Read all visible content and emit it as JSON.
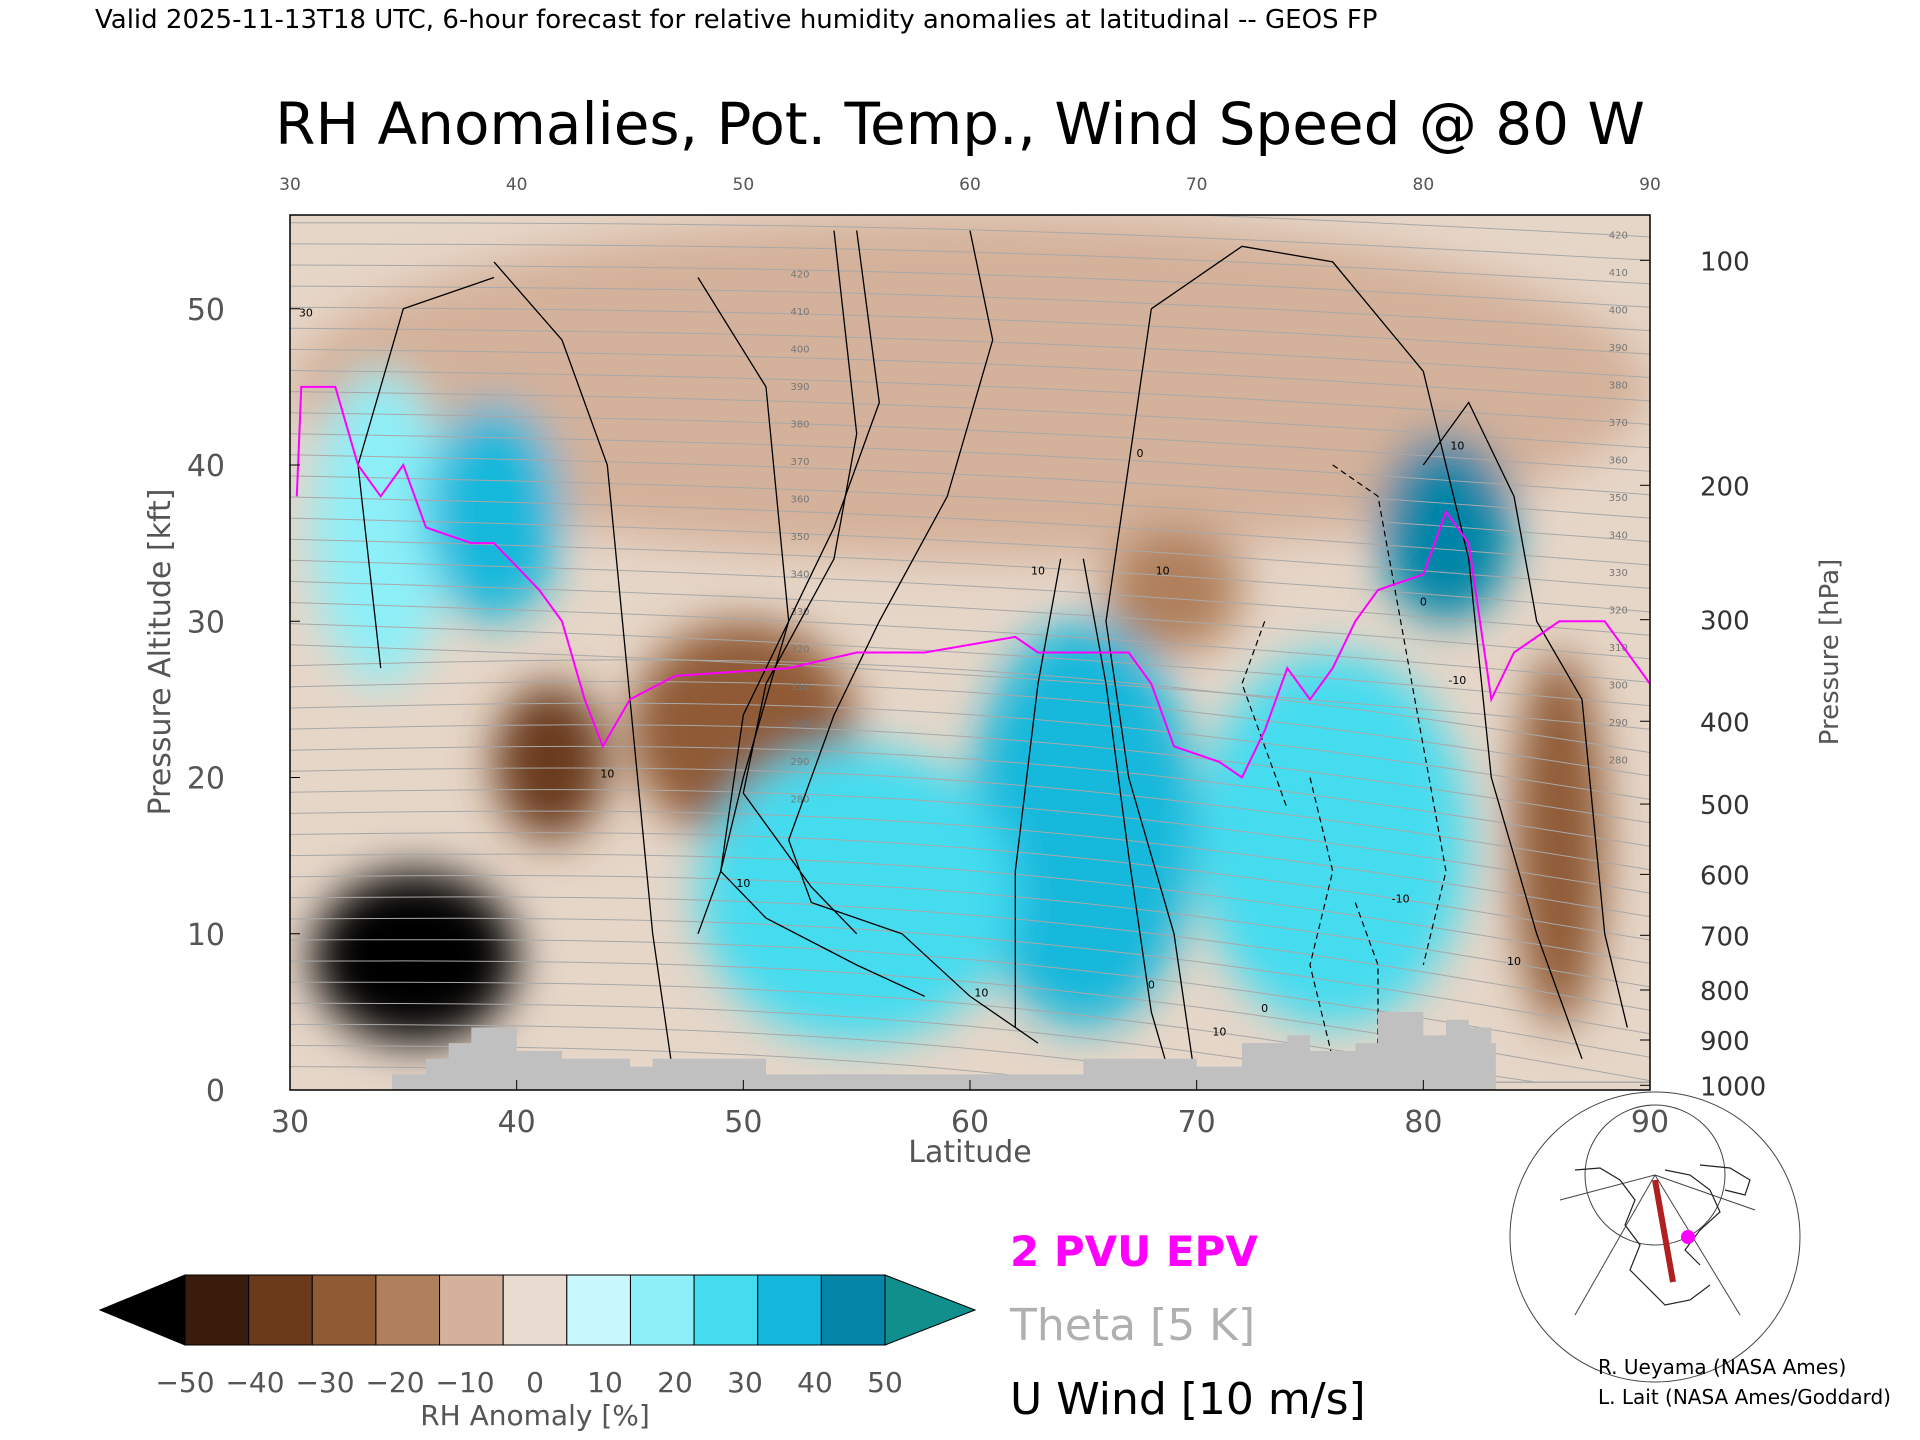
{
  "header": {
    "validity": "Valid 2025-11-13T18 UTC, 6-hour forecast for relative humidity anomalies at latitudinal -- GEOS FP",
    "title": "RH Anomalies, Pot. Temp., Wind Speed @ 80 W"
  },
  "chart_data": {
    "type": "heatmap",
    "title": "RH Anomalies, Pot. Temp., Wind Speed @ 80 W",
    "xlabel": "Latitude",
    "ylabel_left": "Pressure Altitude [kft]",
    "ylabel_right": "Pressure [hPa]",
    "xlim": [
      30,
      90
    ],
    "ylim_kft": [
      0,
      56
    ],
    "x_ticks": [
      "30",
      "40",
      "50",
      "60",
      "70",
      "80",
      "90"
    ],
    "top_x_ticks": [
      "30",
      "40",
      "50",
      "60",
      "70",
      "80",
      "90"
    ],
    "y_ticks_kft": [
      "0",
      "10",
      "20",
      "30",
      "40",
      "50"
    ],
    "pressure_ticks": [
      {
        "label": "100",
        "kft": 53.1
      },
      {
        "label": "200",
        "kft": 38.7
      },
      {
        "label": "300",
        "kft": 30.1
      },
      {
        "label": "400",
        "kft": 23.6
      },
      {
        "label": "500",
        "kft": 18.3
      },
      {
        "label": "600",
        "kft": 13.8
      },
      {
        "label": "700",
        "kft": 9.9
      },
      {
        "label": "800",
        "kft": 6.4
      },
      {
        "label": "900",
        "kft": 3.2
      },
      {
        "label": "1000",
        "kft": 0.3
      }
    ],
    "rh_anomaly_regions": [
      {
        "lat": [
          36,
          42
        ],
        "kft": [
          30,
          44
        ],
        "value": 35
      },
      {
        "lat": [
          31,
          37
        ],
        "kft": [
          26,
          46
        ],
        "value": 12
      },
      {
        "lat": [
          48,
          62
        ],
        "kft": [
          3,
          22
        ],
        "value": 22
      },
      {
        "lat": [
          60,
          70
        ],
        "kft": [
          4,
          30
        ],
        "value": 30
      },
      {
        "lat": [
          70,
          82
        ],
        "kft": [
          4,
          28
        ],
        "value": 25
      },
      {
        "lat": [
          78,
          84
        ],
        "kft": [
          30,
          42
        ],
        "value": 50
      },
      {
        "lat": [
          31,
          40
        ],
        "kft": [
          3,
          14
        ],
        "value": -55
      },
      {
        "lat": [
          39,
          44
        ],
        "kft": [
          16,
          26
        ],
        "value": -40
      },
      {
        "lat": [
          45,
          55
        ],
        "kft": [
          16,
          30
        ],
        "value": -25
      },
      {
        "lat": [
          84,
          88
        ],
        "kft": [
          4,
          28
        ],
        "value": -30
      },
      {
        "lat": [
          66,
          72
        ],
        "kft": [
          28,
          36
        ],
        "value": -20
      },
      {
        "lat": [
          30,
          90
        ],
        "kft": [
          34,
          56
        ],
        "value": -8
      }
    ],
    "theta_labels": [
      "420",
      "410",
      "400",
      "390",
      "380",
      "370",
      "360",
      "350",
      "340",
      "330",
      "320",
      "310",
      "300",
      "290",
      "280"
    ],
    "wind_contour_labels": [
      "30",
      "10",
      "10",
      "10",
      "0",
      "10",
      "10",
      "10",
      "0",
      "10",
      "-10",
      "-10",
      "0",
      "10",
      "0"
    ],
    "orography": [
      {
        "lat": 34.5,
        "kft": 1
      },
      {
        "lat": 36,
        "kft": 2
      },
      {
        "lat": 37,
        "kft": 3
      },
      {
        "lat": 38,
        "kft": 4
      },
      {
        "lat": 39.5,
        "kft": 4
      },
      {
        "lat": 40,
        "kft": 2.5
      },
      {
        "lat": 42,
        "kft": 2
      },
      {
        "lat": 44,
        "kft": 2
      },
      {
        "lat": 45,
        "kft": 1.5
      },
      {
        "lat": 46,
        "kft": 2
      },
      {
        "lat": 50,
        "kft": 2
      },
      {
        "lat": 51,
        "kft": 1
      },
      {
        "lat": 64,
        "kft": 1
      },
      {
        "lat": 65,
        "kft": 2
      },
      {
        "lat": 68,
        "kft": 2
      },
      {
        "lat": 70,
        "kft": 1.5
      },
      {
        "lat": 72,
        "kft": 3
      },
      {
        "lat": 74,
        "kft": 3.5
      },
      {
        "lat": 75,
        "kft": 2.5
      },
      {
        "lat": 77,
        "kft": 3
      },
      {
        "lat": 78,
        "kft": 5
      },
      {
        "lat": 79,
        "kft": 5
      },
      {
        "lat": 80,
        "kft": 3.5
      },
      {
        "lat": 81,
        "kft": 4.5
      },
      {
        "lat": 82,
        "kft": 4
      },
      {
        "lat": 83,
        "kft": 3
      },
      {
        "lat": 83.2,
        "kft": 0
      }
    ],
    "pv2_line": [
      {
        "lat": 30.3,
        "kft": 38
      },
      {
        "lat": 30.5,
        "kft": 45
      },
      {
        "lat": 32,
        "kft": 45
      },
      {
        "lat": 33,
        "kft": 40
      },
      {
        "lat": 34,
        "kft": 38
      },
      {
        "lat": 35,
        "kft": 40
      },
      {
        "lat": 36,
        "kft": 36
      },
      {
        "lat": 38,
        "kft": 35
      },
      {
        "lat": 39,
        "kft": 35
      },
      {
        "lat": 41,
        "kft": 32
      },
      {
        "lat": 42,
        "kft": 30
      },
      {
        "lat": 43,
        "kft": 25
      },
      {
        "lat": 43.8,
        "kft": 22
      },
      {
        "lat": 45,
        "kft": 25
      },
      {
        "lat": 47,
        "kft": 26.5
      },
      {
        "lat": 52,
        "kft": 27
      },
      {
        "lat": 55,
        "kft": 28
      },
      {
        "lat": 58,
        "kft": 28
      },
      {
        "lat": 62,
        "kft": 29
      },
      {
        "lat": 63,
        "kft": 28
      },
      {
        "lat": 65,
        "kft": 28
      },
      {
        "lat": 67,
        "kft": 28
      },
      {
        "lat": 68,
        "kft": 26
      },
      {
        "lat": 69,
        "kft": 22
      },
      {
        "lat": 71,
        "kft": 21
      },
      {
        "lat": 72,
        "kft": 20
      },
      {
        "lat": 73,
        "kft": 23
      },
      {
        "lat": 74,
        "kft": 27
      },
      {
        "lat": 75,
        "kft": 25
      },
      {
        "lat": 76,
        "kft": 27
      },
      {
        "lat": 77,
        "kft": 30
      },
      {
        "lat": 78,
        "kft": 32
      },
      {
        "lat": 80,
        "kft": 33
      },
      {
        "lat": 81,
        "kft": 37
      },
      {
        "lat": 82,
        "kft": 35
      },
      {
        "lat": 83,
        "kft": 25
      },
      {
        "lat": 84,
        "kft": 28
      },
      {
        "lat": 86,
        "kft": 30
      },
      {
        "lat": 88,
        "kft": 30
      },
      {
        "lat": 90,
        "kft": 26
      }
    ],
    "wind_lines": [
      [
        {
          "lat": 34,
          "kft": 27
        },
        {
          "lat": 33,
          "kft": 40
        },
        {
          "lat": 35,
          "kft": 50
        },
        {
          "lat": 39,
          "kft": 52
        }
      ],
      [
        {
          "lat": 39,
          "kft": 53
        },
        {
          "lat": 42,
          "kft": 48
        },
        {
          "lat": 44,
          "kft": 40
        },
        {
          "lat": 45,
          "kft": 25
        },
        {
          "lat": 46,
          "kft": 10
        },
        {
          "lat": 47,
          "kft": 0
        }
      ],
      [
        {
          "lat": 48,
          "kft": 52
        },
        {
          "lat": 51,
          "kft": 45
        },
        {
          "lat": 52,
          "kft": 30
        },
        {
          "lat": 50,
          "kft": 20
        },
        {
          "lat": 49,
          "kft": 14
        },
        {
          "lat": 48,
          "kft": 10
        }
      ],
      [
        {
          "lat": 54,
          "kft": 55
        },
        {
          "lat": 55,
          "kft": 42
        },
        {
          "lat": 54,
          "kft": 34
        },
        {
          "lat": 51,
          "kft": 26
        },
        {
          "lat": 50,
          "kft": 19
        },
        {
          "lat": 53,
          "kft": 13
        },
        {
          "lat": 55,
          "kft": 10
        }
      ],
      [
        {
          "lat": 55,
          "kft": 55
        },
        {
          "lat": 56,
          "kft": 44
        },
        {
          "lat": 54,
          "kft": 36
        },
        {
          "lat": 52,
          "kft": 30
        },
        {
          "lat": 50,
          "kft": 24
        },
        {
          "lat": 49,
          "kft": 14
        },
        {
          "lat": 51,
          "kft": 11
        },
        {
          "lat": 55,
          "kft": 8
        },
        {
          "lat": 58,
          "kft": 6
        }
      ],
      [
        {
          "lat": 60,
          "kft": 55
        },
        {
          "lat": 61,
          "kft": 48
        },
        {
          "lat": 59,
          "kft": 38
        },
        {
          "lat": 56,
          "kft": 30
        },
        {
          "lat": 54,
          "kft": 24
        },
        {
          "lat": 52,
          "kft": 16
        },
        {
          "lat": 53,
          "kft": 12
        },
        {
          "lat": 57,
          "kft": 10
        },
        {
          "lat": 60,
          "kft": 6
        },
        {
          "lat": 63,
          "kft": 3
        }
      ],
      [
        {
          "lat": 64,
          "kft": 34
        },
        {
          "lat": 63,
          "kft": 26
        },
        {
          "lat": 62,
          "kft": 14
        },
        {
          "lat": 62,
          "kft": 4
        }
      ],
      [
        {
          "lat": 65,
          "kft": 34
        },
        {
          "lat": 66,
          "kft": 26
        },
        {
          "lat": 67,
          "kft": 15
        },
        {
          "lat": 68,
          "kft": 5
        },
        {
          "lat": 69,
          "kft": 0
        }
      ],
      [
        {
          "lat": 68,
          "kft": 50
        },
        {
          "lat": 72,
          "kft": 54
        },
        {
          "lat": 76,
          "kft": 53
        },
        {
          "lat": 80,
          "kft": 46
        },
        {
          "lat": 82,
          "kft": 34
        },
        {
          "lat": 83,
          "kft": 20
        },
        {
          "lat": 85,
          "kft": 10
        },
        {
          "lat": 87,
          "kft": 2
        }
      ],
      [
        {
          "lat": 68,
          "kft": 50
        },
        {
          "lat": 67,
          "kft": 40
        },
        {
          "lat": 66,
          "kft": 30
        },
        {
          "lat": 67,
          "kft": 20
        },
        {
          "lat": 69,
          "kft": 10
        },
        {
          "lat": 70,
          "kft": 0
        }
      ],
      [
        {
          "lat": 80,
          "kft": 40
        },
        {
          "lat": 82,
          "kft": 44
        },
        {
          "lat": 84,
          "kft": 38
        },
        {
          "lat": 85,
          "kft": 30
        },
        {
          "lat": 87,
          "kft": 25
        },
        {
          "lat": 88,
          "kft": 10
        },
        {
          "lat": 89,
          "kft": 4
        }
      ]
    ],
    "legend": [
      {
        "label": "2 PVU EPV",
        "color": "#ff00ff"
      },
      {
        "label": "Theta [5 K]",
        "color": "#b0b0b0"
      },
      {
        "label": "U Wind [10 m/s]",
        "color": "#000000"
      }
    ],
    "colorbar": {
      "label": "RH Anomaly [%]",
      "ticks": [
        "-50",
        "-40",
        "-30",
        "-20",
        "-10",
        "0",
        "10",
        "20",
        "30",
        "40",
        "50"
      ],
      "colors": [
        "#3a1c0c",
        "#6b3a1a",
        "#8f5a34",
        "#b0805c",
        "#d4b19a",
        "#eadbd0",
        "#c8f8fb",
        "#8deff8",
        "#45dcf0",
        "#15b8dc",
        "#0585a8"
      ],
      "below_color": "#000000",
      "above_color": "#108f8c"
    },
    "grid": false
  },
  "credits": {
    "line1": "R. Ueyama (NASA Ames)",
    "line2": "L. Lait (NASA Ames/Goddard)"
  },
  "colors": {
    "epv": "#ff00ff",
    "theta": "#a8a8a8",
    "terrain": "#c0c0c0",
    "cross_section": "#b02020",
    "location_dot": "#ff00ff"
  }
}
